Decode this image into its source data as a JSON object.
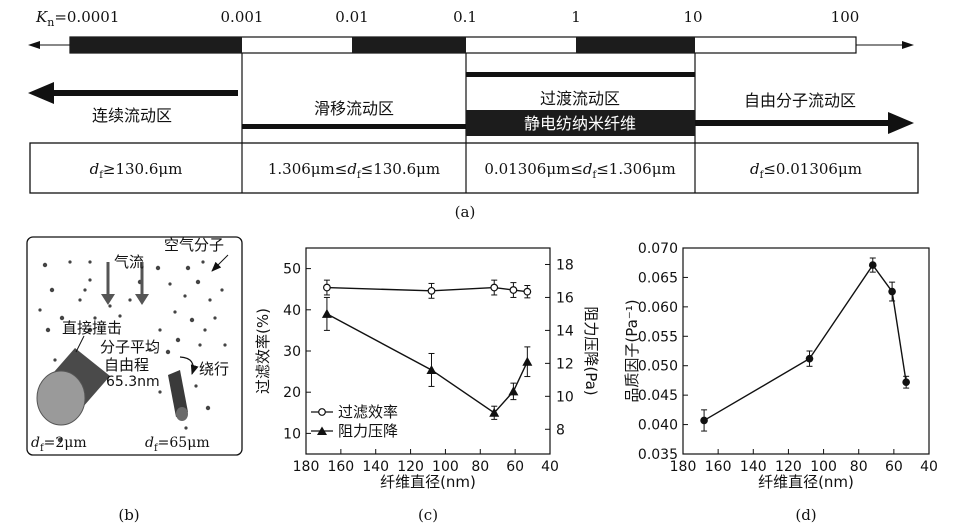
{
  "panel_a": {
    "kn_prefix": "K",
    "kn_sub": "n",
    "kn_first": "=0.0001",
    "kn_ticks": [
      "0.001",
      "0.01",
      "0.1",
      "1",
      "10",
      "100"
    ],
    "regimes": [
      "连续流动区",
      "滑移流动区",
      "过渡流动区",
      "自由分子流动区"
    ],
    "electrospin_label": "静电纺纳米纤维",
    "diam": [
      {
        "pre": "d",
        "sub": "f",
        "post": "≥130.6μm"
      },
      {
        "lead": "1.306μm≤",
        "pre": "d",
        "sub": "f",
        "post": "≤130.6μm"
      },
      {
        "lead": "0.01306μm≤",
        "pre": "d",
        "sub": "f",
        "post": "≤1.306μm"
      },
      {
        "pre": "d",
        "sub": "f",
        "post": "≤0.01306μm"
      }
    ],
    "caption": "(a)"
  },
  "panel_b": {
    "airflow": "气流",
    "air_molecule": "空气分子",
    "direct_impact": "直接撞击",
    "mfp_line1": "分子平均",
    "mfp_line2": "自由程",
    "mfp_value": "65.3nm",
    "bypass": "绕行",
    "d_left": {
      "pre": "d",
      "sub": "f",
      "post": "=2μm"
    },
    "d_right": {
      "pre": "d",
      "sub": "f",
      "post": "=65μm"
    },
    "caption": "(b)"
  },
  "chart_data": [
    {
      "type": "line",
      "panel": "c",
      "xlabel": "纤维直径(nm)",
      "ylabel": "过滤效率(%)",
      "y2label": "阻力压降(Pa)",
      "xlim": [
        180,
        40
      ],
      "ylim": [
        5,
        55
      ],
      "y2lim": [
        6.5,
        19
      ],
      "xticks": [
        180,
        160,
        140,
        120,
        100,
        80,
        60,
        40
      ],
      "yticks": [
        10,
        20,
        30,
        40,
        50
      ],
      "y2ticks": [
        8,
        10,
        12,
        14,
        16,
        18
      ],
      "series": [
        {
          "name": "过滤效率",
          "axis": "left",
          "marker": "open-circle",
          "x": [
            168,
            108,
            72,
            61,
            53
          ],
          "y": [
            45.4,
            44.6,
            45.4,
            44.8,
            44.4
          ],
          "err": [
            1.8,
            1.8,
            1.8,
            1.8,
            1.5
          ]
        },
        {
          "name": "阻力压降",
          "axis": "right",
          "marker": "triangle",
          "x": [
            168,
            108,
            72,
            61,
            53
          ],
          "y": [
            15.0,
            11.6,
            9.0,
            10.3,
            12.1
          ],
          "err": [
            1.0,
            1.0,
            0.4,
            0.5,
            0.9
          ]
        }
      ],
      "legend": "bottom-left",
      "caption": "(c)"
    },
    {
      "type": "line",
      "panel": "d",
      "xlabel": "纤维直径(nm)",
      "ylabel": "品质因子(Pa⁻¹)",
      "xlim": [
        180,
        40
      ],
      "ylim": [
        0.035,
        0.07
      ],
      "xticks": [
        180,
        160,
        140,
        120,
        100,
        80,
        60,
        40
      ],
      "yticks": [
        0.035,
        0.04,
        0.045,
        0.05,
        0.055,
        0.06,
        0.065,
        0.07
      ],
      "series": [
        {
          "marker": "filled-circle",
          "x": [
            168,
            108,
            72,
            61,
            53
          ],
          "y": [
            0.0407,
            0.0512,
            0.0671,
            0.0626,
            0.0472
          ],
          "err": [
            0.0018,
            0.0013,
            0.0012,
            0.0016,
            0.001
          ]
        }
      ],
      "caption": "(d)"
    }
  ]
}
